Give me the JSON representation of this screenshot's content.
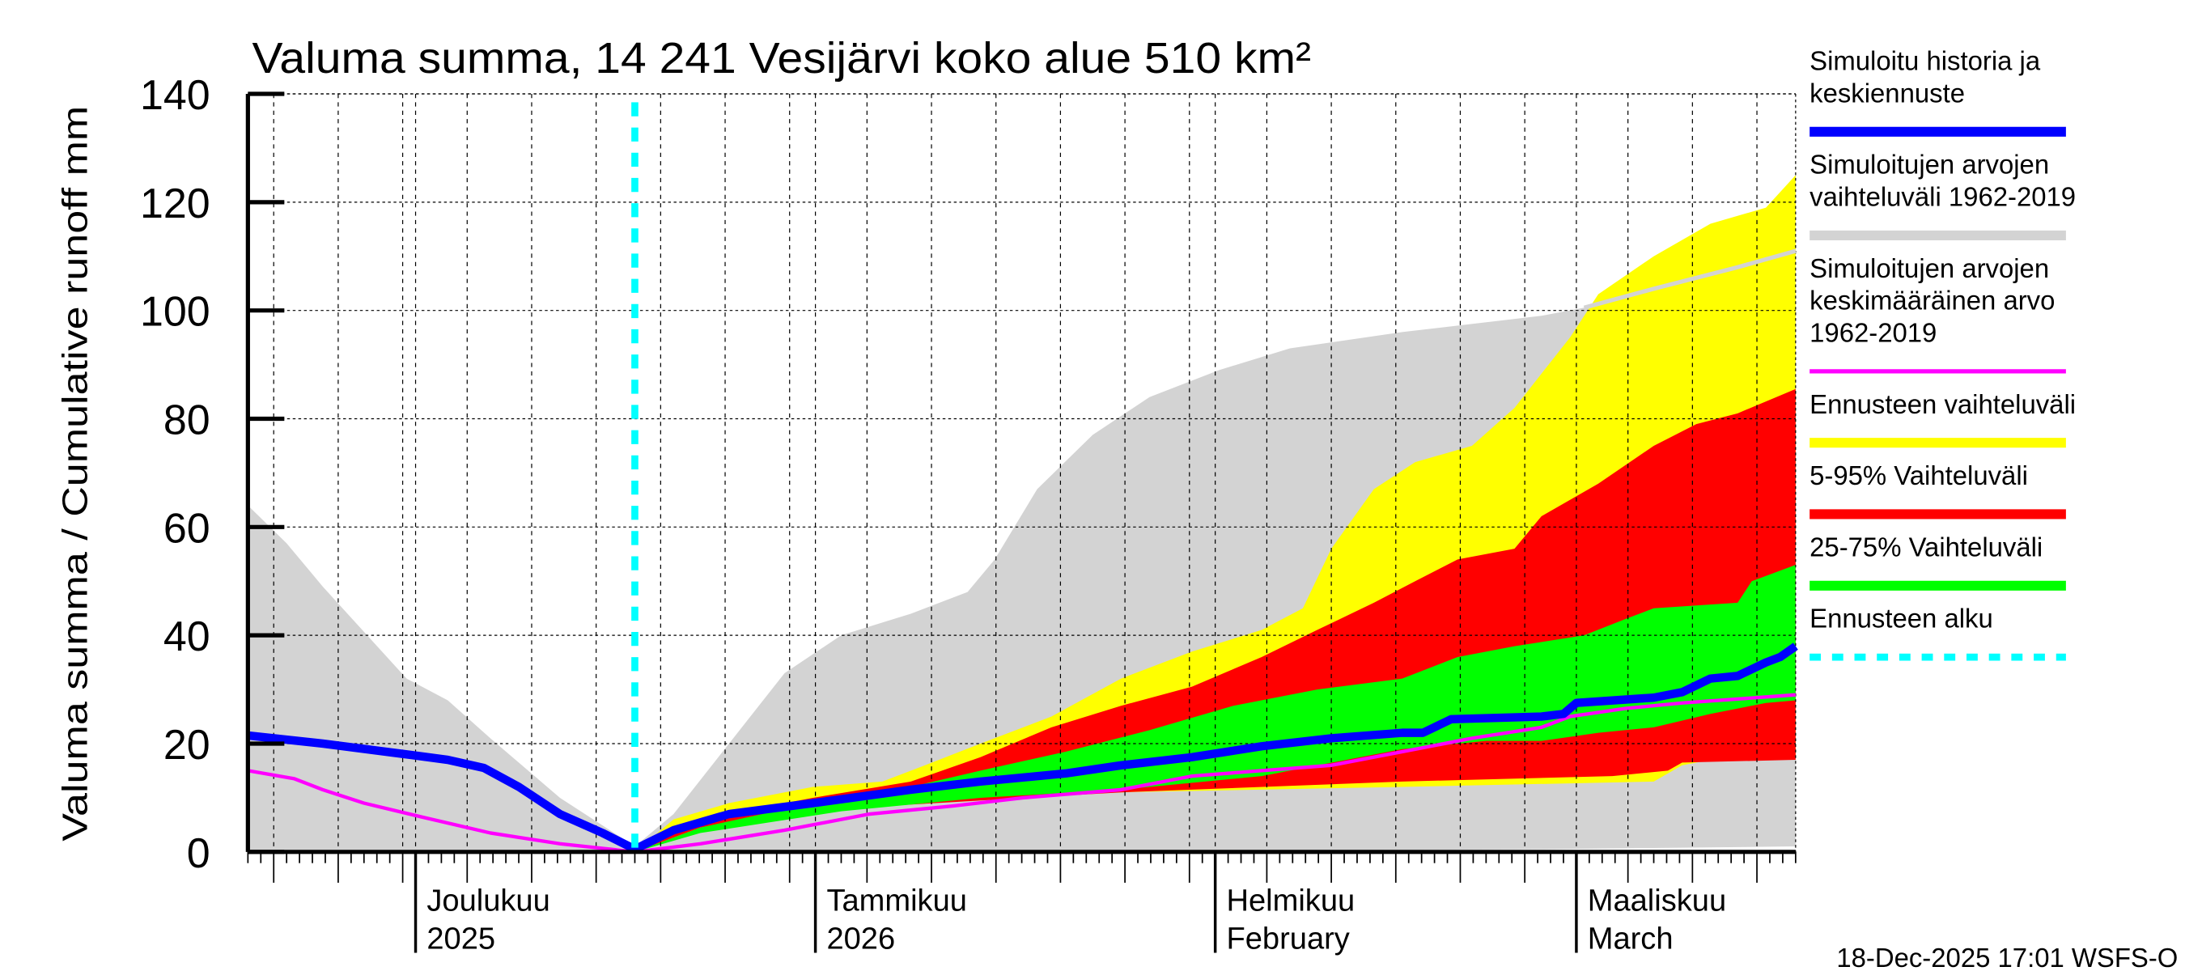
{
  "chart_data": {
    "type": "area",
    "title": "Valuma summa, 14 241 Vesijärvi koko alue 510 km²",
    "ylabel": "Valuma summa / Cumulative runoff    mm",
    "xlabel": "",
    "x_unit": "days since 18-Nov-2025",
    "xlim": [
      0,
      120
    ],
    "ylim": [
      0,
      140
    ],
    "yticks": [
      0,
      20,
      40,
      60,
      80,
      100,
      120,
      140
    ],
    "grid": true,
    "legend_placement": "right",
    "forecast_start_day": 30,
    "month_labels": [
      {
        "day": 13,
        "line1": "Joulukuu",
        "line2": "2025"
      },
      {
        "day": 44,
        "line1": "Tammikuu",
        "line2": "2026"
      },
      {
        "day": 75,
        "line1": "Helmikuu",
        "line2": "February"
      },
      {
        "day": 103,
        "line1": "Maaliskuu",
        "line2": "March"
      }
    ],
    "series": [
      {
        "key": "hist_range",
        "name": "Simuloitujen arvojen vaihteluväli 1962-2019",
        "kind": "band",
        "color": "#d3d3d3",
        "upper": [
          [
            0,
            64
          ],
          [
            3,
            57
          ],
          [
            5.8,
            49
          ],
          [
            12.3,
            32
          ],
          [
            15.5,
            28
          ],
          [
            18.8,
            21
          ],
          [
            24.2,
            10
          ],
          [
            30,
            1
          ],
          [
            33,
            7
          ],
          [
            37.3,
            20
          ],
          [
            41.6,
            33
          ],
          [
            46,
            40
          ],
          [
            51.4,
            44
          ],
          [
            55.8,
            48
          ],
          [
            57.9,
            54
          ],
          [
            61.2,
            67
          ],
          [
            65.5,
            77
          ],
          [
            69.9,
            84
          ],
          [
            75.3,
            89
          ],
          [
            80.8,
            93
          ],
          [
            89.5,
            96
          ],
          [
            100.3,
            99
          ],
          [
            103.6,
            100.5
          ],
          [
            109,
            104
          ],
          [
            115.5,
            108
          ],
          [
            120,
            111
          ]
        ],
        "lower": [
          [
            0,
            0
          ],
          [
            60,
            0
          ],
          [
            100,
            0.5
          ],
          [
            120,
            1
          ]
        ]
      },
      {
        "key": "forecast_range",
        "name": "Ennusteen vaihteluväli",
        "kind": "band",
        "color": "#ffff00",
        "upper": [
          [
            30,
            0
          ],
          [
            33,
            6
          ],
          [
            37.3,
            9
          ],
          [
            43.8,
            12
          ],
          [
            49.2,
            13
          ],
          [
            52.5,
            16
          ],
          [
            56.8,
            20
          ],
          [
            62.3,
            25
          ],
          [
            67.7,
            32
          ],
          [
            73.2,
            37
          ],
          [
            78.6,
            41
          ],
          [
            81.8,
            45
          ],
          [
            84,
            56
          ],
          [
            87.3,
            67
          ],
          [
            90.5,
            72
          ],
          [
            94.9,
            75
          ],
          [
            98.2,
            82
          ],
          [
            102.5,
            95
          ],
          [
            104.7,
            103
          ],
          [
            109,
            110
          ],
          [
            113.4,
            116
          ],
          [
            117.7,
            119
          ],
          [
            120,
            125
          ]
        ],
        "lower": [
          [
            30,
            0
          ],
          [
            35.1,
            5
          ],
          [
            43.8,
            8.5
          ],
          [
            56.8,
            10.5
          ],
          [
            89.5,
            12
          ],
          [
            109,
            13
          ],
          [
            111.2,
            16
          ],
          [
            114.5,
            17.5
          ],
          [
            120,
            17.5
          ]
        ]
      },
      {
        "key": "p5_95",
        "name": "5-95% Vaihteluväli",
        "kind": "band",
        "color": "#ff0000",
        "upper": [
          [
            30,
            0
          ],
          [
            35.1,
            6
          ],
          [
            43.8,
            10
          ],
          [
            51.4,
            13
          ],
          [
            56.8,
            17.5
          ],
          [
            62.3,
            23
          ],
          [
            67.7,
            27
          ],
          [
            73.2,
            30.5
          ],
          [
            78.6,
            36
          ],
          [
            82.9,
            41
          ],
          [
            87.3,
            46
          ],
          [
            90.5,
            50
          ],
          [
            93.8,
            54
          ],
          [
            98.2,
            56
          ],
          [
            100.3,
            62
          ],
          [
            104.7,
            68
          ],
          [
            109,
            75
          ],
          [
            112.3,
            79
          ],
          [
            115.5,
            81
          ],
          [
            120,
            85.5
          ]
        ],
        "lower": [
          [
            30,
            0
          ],
          [
            35.1,
            4.5
          ],
          [
            46,
            8
          ],
          [
            67.7,
            11
          ],
          [
            89.5,
            13
          ],
          [
            105.8,
            14
          ],
          [
            110.1,
            15
          ],
          [
            111.2,
            16.5
          ],
          [
            120,
            17
          ]
        ]
      },
      {
        "key": "p25_75",
        "name": "25-75% Vaihteluväli",
        "kind": "band",
        "color": "#00ff00",
        "upper": [
          [
            30,
            0
          ],
          [
            35.1,
            4.5
          ],
          [
            43.8,
            9
          ],
          [
            51.4,
            12
          ],
          [
            56.8,
            15
          ],
          [
            63.4,
            18.5
          ],
          [
            69.9,
            22.5
          ],
          [
            76.4,
            27
          ],
          [
            82.9,
            30
          ],
          [
            89.5,
            32
          ],
          [
            93.8,
            36
          ],
          [
            98.2,
            38
          ],
          [
            103.6,
            40
          ],
          [
            106.8,
            43
          ],
          [
            109,
            45
          ],
          [
            115.5,
            46
          ],
          [
            116.6,
            50
          ],
          [
            120,
            53
          ]
        ],
        "lower": [
          [
            30,
            0
          ],
          [
            35.1,
            3.5
          ],
          [
            46,
            7.5
          ],
          [
            56.8,
            10
          ],
          [
            67.7,
            11.5
          ],
          [
            78.6,
            14
          ],
          [
            89.5,
            19
          ],
          [
            96,
            20.5
          ],
          [
            100.3,
            20.5
          ],
          [
            104.7,
            22
          ],
          [
            109,
            23
          ],
          [
            113.4,
            25.5
          ],
          [
            117.7,
            27.5
          ],
          [
            120,
            28
          ]
        ]
      },
      {
        "key": "mean",
        "name": "Simuloitujen arvojen keskimääräinen arvo 1962-2019",
        "kind": "line",
        "color": "#ff00ff",
        "points": [
          [
            0,
            15
          ],
          [
            3.6,
            13.5
          ],
          [
            5.8,
            11.5
          ],
          [
            9,
            9
          ],
          [
            13.4,
            6.5
          ],
          [
            18.8,
            3.5
          ],
          [
            24.2,
            1.5
          ],
          [
            30,
            0
          ],
          [
            35.1,
            1.5
          ],
          [
            41.6,
            4
          ],
          [
            48.2,
            7
          ],
          [
            54.7,
            8.5
          ],
          [
            60.1,
            10
          ],
          [
            67.7,
            11.5
          ],
          [
            73.2,
            14
          ],
          [
            78.6,
            15
          ],
          [
            84,
            16
          ],
          [
            89.5,
            18.5
          ],
          [
            94.9,
            21
          ],
          [
            100.3,
            23
          ],
          [
            102.5,
            25
          ],
          [
            106.8,
            26.5
          ],
          [
            111.2,
            27.5
          ],
          [
            120,
            29
          ]
        ]
      },
      {
        "key": "median",
        "name": "Simuloitu historia ja keskiennuste",
        "kind": "line",
        "color": "#0000ff",
        "points": [
          [
            0,
            21.5
          ],
          [
            5.8,
            20
          ],
          [
            12.3,
            18
          ],
          [
            15.5,
            17
          ],
          [
            18.3,
            15.5
          ],
          [
            21,
            12
          ],
          [
            24.2,
            7
          ],
          [
            27.5,
            3.5
          ],
          [
            30,
            0.5
          ],
          [
            33,
            4
          ],
          [
            37.3,
            7
          ],
          [
            43.8,
            9
          ],
          [
            51.4,
            11.5
          ],
          [
            56.8,
            13
          ],
          [
            63.4,
            14.5
          ],
          [
            67.7,
            16
          ],
          [
            73.2,
            17.5
          ],
          [
            78.6,
            19.5
          ],
          [
            84,
            21
          ],
          [
            89.5,
            22
          ],
          [
            91.1,
            22
          ],
          [
            93.3,
            24.5
          ],
          [
            100.3,
            25
          ],
          [
            102,
            25.5
          ],
          [
            103,
            27.5
          ],
          [
            109,
            28.5
          ],
          [
            111.2,
            29.5
          ],
          [
            113.4,
            32
          ],
          [
            115.5,
            32.5
          ],
          [
            117.7,
            35
          ],
          [
            118.8,
            36
          ],
          [
            120,
            38
          ]
        ]
      }
    ]
  },
  "legend": [
    {
      "lines": [
        "Simuloitu historia ja",
        "keskiennuste"
      ],
      "color": "#0000ff",
      "style": "thick"
    },
    {
      "lines": [
        "Simuloitujen arvojen",
        "vaihteluväli 1962-2019"
      ],
      "color": "#d3d3d3",
      "style": "thick"
    },
    {
      "lines": [
        "Simuloitujen arvojen",
        "keskimääräinen arvo",
        "   1962-2019"
      ],
      "color": "#ff00ff",
      "style": "thin"
    },
    {
      "lines": [
        "Ennusteen vaihteluväli"
      ],
      "color": "#ffff00",
      "style": "thick"
    },
    {
      "lines": [
        "5-95% Vaihteluväli"
      ],
      "color": "#ff0000",
      "style": "thick"
    },
    {
      "lines": [
        "25-75% Vaihteluväli"
      ],
      "color": "#00ff00",
      "style": "thick"
    },
    {
      "lines": [
        "Ennusteen alku"
      ],
      "color": "#00ffff",
      "style": "dashed"
    }
  ],
  "footer": "18-Dec-2025 17:01 WSFS-O"
}
